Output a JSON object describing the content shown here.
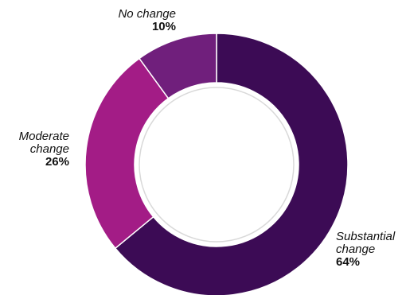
{
  "chart_data": {
    "type": "pie",
    "variant": "donut",
    "title": "",
    "slices": [
      {
        "label_line1": "Substantial",
        "label_line2": "change",
        "value": 64,
        "value_label": "64%",
        "color": "#3c0b55"
      },
      {
        "label_line1": "Moderate",
        "label_line2": "change",
        "value": 26,
        "value_label": "26%",
        "color": "#a31c86"
      },
      {
        "label_line1": "",
        "label_line2": "No change",
        "value": 10,
        "value_label": "10%",
        "color": "#701f7c"
      }
    ],
    "legend": "none",
    "center_ring_color": "#d9d9d9"
  }
}
